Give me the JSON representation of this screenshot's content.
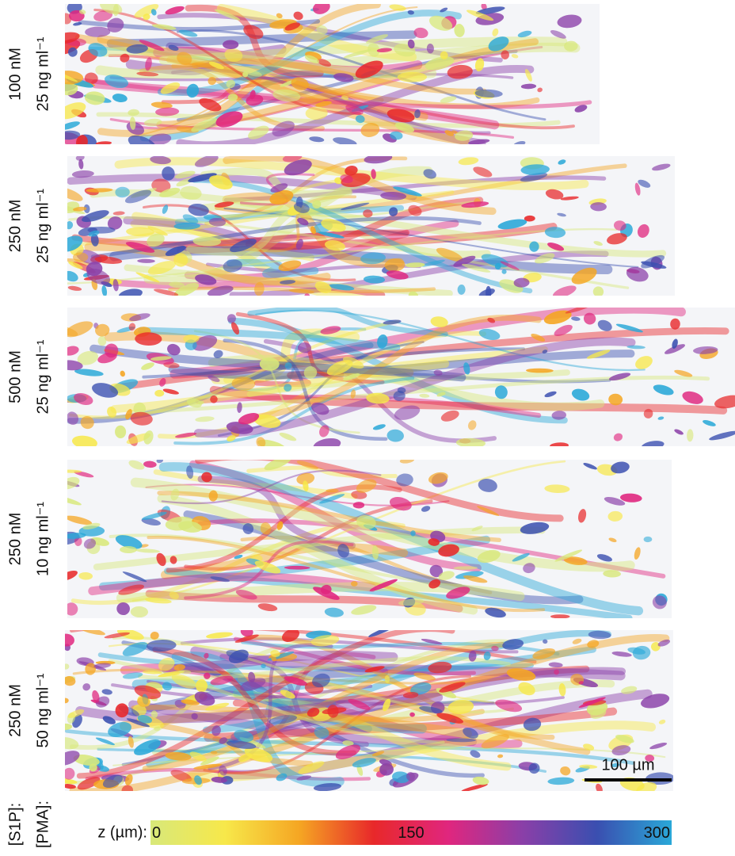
{
  "panels": [
    {
      "s1p": "100 nM",
      "pma": "25 ng ml⁻¹"
    },
    {
      "s1p": "250 nM",
      "pma": "25 ng ml⁻¹"
    },
    {
      "s1p": "500 nM",
      "pma": "25 ng ml⁻¹"
    },
    {
      "s1p": "250 nM",
      "pma": "10 ng ml⁻¹"
    },
    {
      "s1p": "250 nM",
      "pma": "50 ng ml⁻¹"
    }
  ],
  "scale_bar": "100 µm",
  "row_labels": [
    "[S1P]:",
    "[PMA]:"
  ],
  "colorbar": {
    "label": "z (µm):",
    "range": [
      0,
      300
    ],
    "ticks": [
      0,
      150,
      300
    ],
    "colors": [
      "#d8e87a",
      "#f7e84a",
      "#f5a623",
      "#e8282a",
      "#e0267e",
      "#8a3fa8",
      "#3a4fb0",
      "#2aa8d8"
    ]
  }
}
